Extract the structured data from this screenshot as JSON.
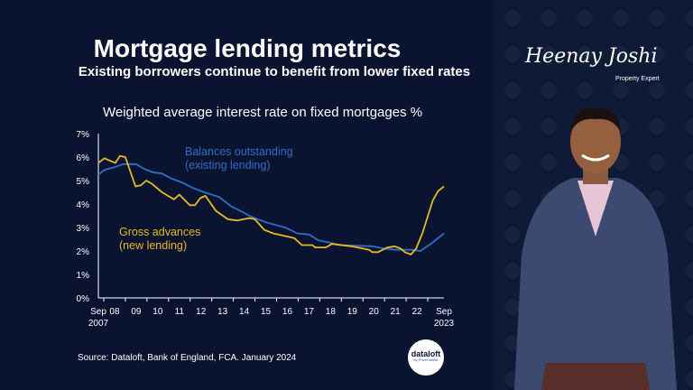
{
  "header": {
    "title": "Mortgage lending metrics",
    "subtitle": "Existing borrowers continue to benefit from lower fixed rates"
  },
  "footer": {
    "source": "Source: Dataloft, Bank of England, FCA. January 2024",
    "logo_text": "dataloft",
    "logo_sub": "by PriceHubble"
  },
  "brand": {
    "signature": "Heenay Joshi",
    "role": "Property Expert"
  },
  "colors": {
    "background": "#0a1431",
    "gross": "#e8b923",
    "balances": "#2f6fc4",
    "text": "#ffffff"
  },
  "chart_data": {
    "type": "line",
    "title": "Weighted average interest rate on fixed mortgages %",
    "xlabel": "",
    "ylabel": "",
    "ylim": [
      0,
      7
    ],
    "xlim": [
      2007.75,
      2023.75
    ],
    "grid": false,
    "y_ticks": [
      "0%",
      "1%",
      "2%",
      "3%",
      "4%",
      "5%",
      "6%",
      "7%"
    ],
    "x_ticks": [
      {
        "x": 2007.75,
        "label": "Sep",
        "label2": "2007"
      },
      {
        "x": 2008.5,
        "label": "08"
      },
      {
        "x": 2009.5,
        "label": "09"
      },
      {
        "x": 2010.5,
        "label": "10"
      },
      {
        "x": 2011.5,
        "label": "11"
      },
      {
        "x": 2012.5,
        "label": "12"
      },
      {
        "x": 2013.5,
        "label": "13"
      },
      {
        "x": 2014.5,
        "label": "14"
      },
      {
        "x": 2015.5,
        "label": "15"
      },
      {
        "x": 2016.5,
        "label": "16"
      },
      {
        "x": 2017.5,
        "label": "17"
      },
      {
        "x": 2018.5,
        "label": "18"
      },
      {
        "x": 2019.5,
        "label": "19"
      },
      {
        "x": 2020.5,
        "label": "20"
      },
      {
        "x": 2021.5,
        "label": "21"
      },
      {
        "x": 2022.5,
        "label": "22"
      },
      {
        "x": 2023.75,
        "label": "Sep",
        "label2": "2023"
      }
    ],
    "series": [
      {
        "name": "Balances outstanding (existing lending)",
        "label_line1": "Balances outstanding",
        "label_line2": "(existing lending)",
        "color": "#2f6fc4",
        "x": [
          2007.75,
          2008.03,
          2008.6,
          2008.89,
          2009.5,
          2009.86,
          2010.28,
          2010.7,
          2011.1,
          2011.67,
          2012.09,
          2012.65,
          2013.34,
          2013.9,
          2014.45,
          2014.73,
          2015.57,
          2016.4,
          2016.96,
          2017.51,
          2017.93,
          2018.49,
          2018.9,
          2020.43,
          2020.98,
          2021.54,
          2022.24,
          2022.66,
          2023.21,
          2023.75
        ],
        "y": [
          5.25,
          5.45,
          5.6,
          5.7,
          5.7,
          5.5,
          5.35,
          5.3,
          5.1,
          4.9,
          4.7,
          4.5,
          4.3,
          3.9,
          3.65,
          3.5,
          3.2,
          3.0,
          2.75,
          2.7,
          2.45,
          2.35,
          2.25,
          2.2,
          2.1,
          2.05,
          2.05,
          2.0,
          2.35,
          2.75
        ]
      },
      {
        "name": "Gross advances (new lending)",
        "label_line1": "Gross advances",
        "label_line2": "(new lending)",
        "color": "#e8b923",
        "x": [
          2007.75,
          2008.03,
          2008.54,
          2008.75,
          2009.0,
          2009.47,
          2009.72,
          2009.97,
          2010.25,
          2010.7,
          2011.25,
          2011.5,
          2011.98,
          2012.22,
          2012.47,
          2012.7,
          2013.2,
          2013.75,
          2014.17,
          2014.73,
          2015.0,
          2015.43,
          2015.84,
          2016.82,
          2017.17,
          2017.65,
          2017.8,
          2018.28,
          2018.56,
          2019.46,
          2020.29,
          2020.43,
          2020.7,
          2021.13,
          2021.47,
          2021.75,
          2021.94,
          2022.22,
          2022.46,
          2022.75,
          2023.23,
          2023.48,
          2023.75
        ],
        "y": [
          5.75,
          5.95,
          5.75,
          6.05,
          6.0,
          4.75,
          4.8,
          5.0,
          4.85,
          4.5,
          4.2,
          4.4,
          3.95,
          3.95,
          4.25,
          4.35,
          3.7,
          3.35,
          3.3,
          3.4,
          3.35,
          2.9,
          2.75,
          2.55,
          2.25,
          2.25,
          2.15,
          2.15,
          2.3,
          2.2,
          2.05,
          1.95,
          1.95,
          2.15,
          2.2,
          2.1,
          1.95,
          1.85,
          2.1,
          2.75,
          4.15,
          4.55,
          4.75
        ]
      }
    ]
  }
}
